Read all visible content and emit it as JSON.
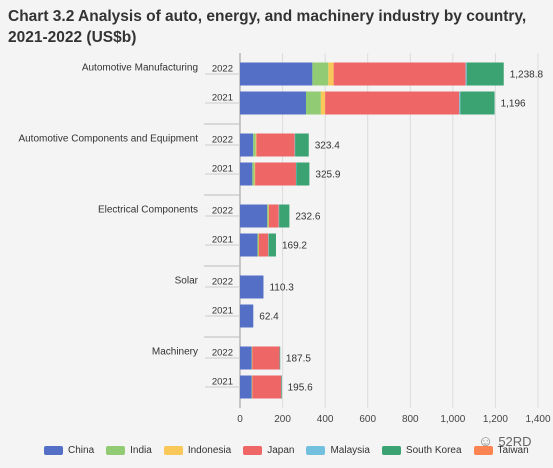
{
  "title": "Chart 3.2 Analysis of auto, energy, and machinery industry by country, 2021-2022 (US$b)",
  "watermark": {
    "text": "52RD",
    "icon": "wechat-icon"
  },
  "chart_data": {
    "type": "bar",
    "orientation": "horizontal",
    "stacked": true,
    "title": "Chart 3.2 Analysis of auto, energy, and machinery industry by country, 2021-2022 (US$b)",
    "xlim": [
      0,
      1400
    ],
    "xticks": [
      "0",
      "200",
      "400",
      "600",
      "800",
      "1,000",
      "1,200",
      "1,400"
    ],
    "grid": true,
    "legend_position": "bottom",
    "series_names": [
      "China",
      "India",
      "Indonesia",
      "Japan",
      "Malaysia",
      "South Korea",
      "Taiwan"
    ],
    "colors": [
      "#5470c6",
      "#91cc75",
      "#fac858",
      "#ee6666",
      "#73c0de",
      "#3ba272",
      "#fc8452"
    ],
    "groups": [
      {
        "category": "Automotive Manufacturing",
        "bars": [
          {
            "year": "2022",
            "total_label": "1,238.8",
            "values": [
              340,
              75,
              25,
              620,
              5,
              174,
              0
            ]
          },
          {
            "year": "2021",
            "total_label": "1,196",
            "values": [
              310,
              70,
              20,
              630,
              5,
              161,
              0
            ]
          }
        ]
      },
      {
        "category": "Automotive Components and Equipment",
        "bars": [
          {
            "year": "2022",
            "total_label": "323.4",
            "values": [
              62,
              12,
              3,
              180,
              2,
              64,
              0
            ]
          },
          {
            "year": "2021",
            "total_label": "325.9",
            "values": [
              58,
              10,
              3,
              192,
              2,
              61,
              0
            ]
          }
        ]
      },
      {
        "category": "Electrical Components",
        "bars": [
          {
            "year": "2022",
            "total_label": "232.6",
            "values": [
              128,
              6,
              2,
              46,
              2,
              48,
              0
            ]
          },
          {
            "year": "2021",
            "total_label": "169.2",
            "values": [
              82,
              5,
              2,
              44,
              2,
              34,
              0
            ]
          }
        ]
      },
      {
        "category": "Solar",
        "bars": [
          {
            "year": "2022",
            "total_label": "110.3",
            "values": [
              110.3,
              0,
              0,
              0,
              0,
              0,
              0
            ]
          },
          {
            "year": "2021",
            "total_label": "62.4",
            "values": [
              62.4,
              0,
              0,
              0,
              0,
              0,
              0
            ]
          }
        ]
      },
      {
        "category": "Machinery",
        "bars": [
          {
            "year": "2022",
            "total_label": "187.5",
            "values": [
              55,
              2,
              1,
              128,
              0.5,
              1,
              0
            ]
          },
          {
            "year": "2021",
            "total_label": "195.6",
            "values": [
              55,
              2,
              1,
              136,
              0.6,
              1,
              0
            ]
          }
        ]
      }
    ]
  }
}
